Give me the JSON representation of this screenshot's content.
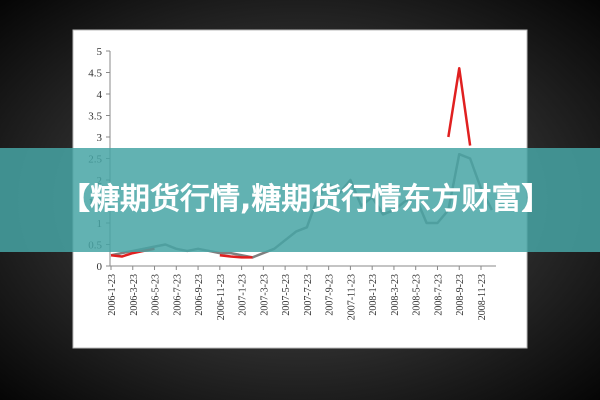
{
  "chart_data": {
    "type": "line",
    "xticks": [
      "2006-1-23",
      "2006-3-23",
      "2006-5-23",
      "2006-7-23",
      "2006-9-23",
      "2006-11-23",
      "2007-1-23",
      "2007-3-23",
      "2007-5-23",
      "2007-7-23",
      "2007-9-23",
      "2007-11-23",
      "2008-1-23",
      "2008-3-23",
      "2008-5-23",
      "2008-7-23",
      "2008-9-23",
      "2008-11-23"
    ],
    "x": [
      "2006-1-23",
      "2006-2-23",
      "2006-3-23",
      "2006-4-23",
      "2006-5-23",
      "2006-6-23",
      "2006-7-23",
      "2006-8-23",
      "2006-9-23",
      "2006-10-23",
      "2006-11-23",
      "2006-12-23",
      "2007-1-23",
      "2007-2-23",
      "2007-3-23",
      "2007-4-23",
      "2007-5-23",
      "2007-6-23",
      "2007-7-23",
      "2007-8-23",
      "2007-9-23",
      "2007-10-23",
      "2007-11-23",
      "2007-12-23",
      "2008-1-23",
      "2008-2-23",
      "2008-3-23",
      "2008-4-23",
      "2008-5-23",
      "2008-6-23",
      "2008-7-23",
      "2008-8-23",
      "2008-9-23",
      "2008-10-23",
      "2008-11-23",
      "2008-12-23"
    ],
    "series": [
      {
        "color": "#7f7f7f",
        "values": [
          0.25,
          0.3,
          0.35,
          0.4,
          0.45,
          0.5,
          0.4,
          0.35,
          0.4,
          0.35,
          0.3,
          0.3,
          0.25,
          0.2,
          0.3,
          0.4,
          0.6,
          0.8,
          0.9,
          1.6,
          1.9,
          1.7,
          2.0,
          1.4,
          1.6,
          1.2,
          1.3,
          1.5,
          1.6,
          1.0,
          1.0,
          1.3,
          2.6,
          2.5,
          1.8,
          1.3
        ]
      },
      {
        "color": "#e02020",
        "values": [
          0.25,
          0.22,
          0.3,
          0.35,
          0.4,
          null,
          null,
          null,
          null,
          null,
          0.25,
          0.22,
          0.2,
          0.2,
          null,
          null,
          null,
          null,
          null,
          null,
          null,
          null,
          null,
          null,
          null,
          null,
          null,
          null,
          null,
          null,
          null,
          3.0,
          4.6,
          2.8,
          null,
          null
        ]
      }
    ],
    "ylim": [
      0,
      5
    ],
    "yticks": [
      0,
      0.5,
      1,
      1.5,
      2,
      2.5,
      3,
      3.5,
      4,
      4.5,
      5
    ]
  },
  "banner": "【糖期货行情,糖期货行情东方财富】"
}
